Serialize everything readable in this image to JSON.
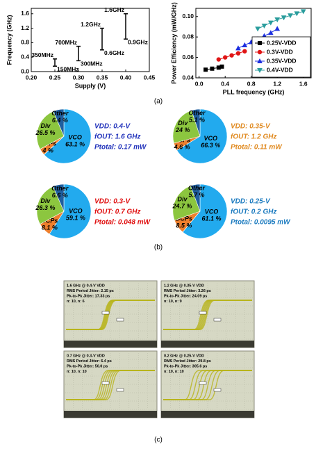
{
  "chart_data": [
    {
      "type": "range",
      "xlabel": "Supply (V)",
      "ylabel": "Frequency (GHz)",
      "x": [
        0.25,
        0.3,
        0.35,
        0.4
      ],
      "low": [
        0.15,
        0.3,
        0.6,
        0.9
      ],
      "high": [
        0.35,
        0.7,
        1.2,
        1.6
      ],
      "low_labels": [
        "150MHz",
        "300MHz",
        "0.6GHz",
        "0.9GHz"
      ],
      "high_labels": [
        "350MHz",
        "700MHz",
        "1.2GHz",
        "1.6GHz"
      ],
      "color": "#000000",
      "xlim": [
        0.2,
        0.45
      ],
      "xticks": [
        {
          "value": 0.2,
          "label": "0.20"
        },
        0.25,
        {
          "value": 0.3,
          "label": "0.30"
        },
        0.35,
        {
          "value": 0.4,
          "label": "0.40"
        },
        0.45
      ],
      "ylim": [
        0,
        1.75
      ],
      "yticks": [
        {
          "value": 0,
          "label": "0.0"
        },
        0.4,
        0.8,
        1.2,
        1.6
      ]
    },
    {
      "type": "line",
      "xlabel": "PLL frequency (GHz)",
      "ylabel": "Power Efficiency (mW/GHz)",
      "legend": "lower right",
      "series": [
        {
          "name": "0.25V-VDD",
          "color": "#000000",
          "marker": "square",
          "x": [
            0.1,
            0.2,
            0.3,
            0.35
          ],
          "values": [
            0.048,
            0.049,
            0.05,
            0.051
          ]
        },
        {
          "name": "0.3V-VDD",
          "color": "#e01515",
          "marker": "circle",
          "x": [
            0.3,
            0.4,
            0.5,
            0.6,
            0.7
          ],
          "values": [
            0.058,
            0.06,
            0.062,
            0.064,
            0.066
          ]
        },
        {
          "name": "0.35V-VDD",
          "color": "#1c2fe0",
          "marker": "triangle",
          "x": [
            0.6,
            0.7,
            0.8,
            0.9,
            1.0,
            1.1,
            1.2
          ],
          "values": [
            0.069,
            0.072,
            0.075,
            0.078,
            0.081,
            0.084,
            0.088
          ]
        },
        {
          "name": "0.4V-VDD",
          "color": "#2a9d9d",
          "marker": "triangle-down",
          "x": [
            0.9,
            1.0,
            1.1,
            1.2,
            1.3,
            1.4,
            1.5,
            1.6
          ],
          "values": [
            0.088,
            0.091,
            0.094,
            0.097,
            0.099,
            0.101,
            0.103,
            0.105
          ]
        }
      ],
      "xlim": [
        -0.05,
        1.72
      ],
      "xticks": [
        {
          "value": 0,
          "label": "0.0"
        },
        0.4,
        0.8,
        1.2,
        1.6
      ],
      "ylim": [
        0.04,
        0.108
      ],
      "yticks": [
        0.04,
        0.06,
        0.08,
        {
          "value": 0.1,
          "label": "0.10"
        }
      ]
    },
    {
      "type": "pie",
      "categories": [
        "VCO",
        "DCPs",
        "Div",
        "Other"
      ],
      "values": [
        63.1,
        4,
        26.5,
        6.4
      ],
      "value_labels": [
        "63.1 %",
        "4 %",
        "26.5 %",
        "6.4 %"
      ],
      "colors": [
        "#22aaee",
        "#ee7f2d",
        "#8cc63f",
        "#1f5f9f"
      ],
      "annotations": [
        "VDD: 0.4-V",
        "fOUT: 1.6 GHz",
        "Ptotal: 0.17 mW"
      ],
      "annotation_color": "#2233bb"
    },
    {
      "type": "pie",
      "categories": [
        "VCO",
        "DCPs",
        "Div",
        "Other"
      ],
      "values": [
        66.3,
        4.6,
        24,
        5.1
      ],
      "value_labels": [
        "66.3 %",
        "4.6 %",
        "24 %",
        "5.1 %"
      ],
      "colors": [
        "#22aaee",
        "#ee7f2d",
        "#8cc63f",
        "#1f5f9f"
      ],
      "annotations": [
        "VDD: 0.35-V",
        "fOUT: 1.2 GHz",
        "Ptotal: 0.11 mW"
      ],
      "annotation_color": "#e08a20"
    },
    {
      "type": "pie",
      "categories": [
        "VCO",
        "DCPs",
        "Div",
        "Other"
      ],
      "values": [
        59.1,
        8.1,
        26.3,
        6.6
      ],
      "value_labels": [
        "59.1 %",
        "8.1 %",
        "26.3 %",
        "6.6 %"
      ],
      "colors": [
        "#22aaee",
        "#ee7f2d",
        "#8cc63f",
        "#1f5f9f"
      ],
      "annotations": [
        "VDD: 0.3-V",
        "fOUT: 0.7 GHz",
        "Ptotal: 0.048 mW"
      ],
      "annotation_color": "#e01010"
    },
    {
      "type": "pie",
      "categories": [
        "VCO",
        "DCPs",
        "Div",
        "Other"
      ],
      "values": [
        61.1,
        8.5,
        24.7,
        5.7
      ],
      "value_labels": [
        "61.1 %",
        "8.5 %",
        "24.7 %",
        "5.7 %"
      ],
      "colors": [
        "#22aaee",
        "#ee7f2d",
        "#8cc63f",
        "#1f5f9f"
      ],
      "annotations": [
        "VDD: 0.25-V",
        "fOUT: 0.2 GHz",
        "Ptotal: 0.0095 mW"
      ],
      "annotation_color": "#1a7abf"
    }
  ],
  "captions": [
    "(a)",
    "(b)",
    "(c)"
  ],
  "scope_panels": [
    {
      "lines": [
        "1.6 GHz @ 0.4-V VDD",
        "RMS Period Jitter: 2.15 ps",
        "Pk-to-Pk Jitter: 17.33 ps",
        "n: 10, n: 6"
      ]
    },
    {
      "lines": [
        "1.2 GHz @ 0.35-V VDD",
        "RMS Period Jitter: 3.26 ps",
        "Pk-to-Pk Jitter: 24.09 ps",
        "n: 10, n: 9"
      ]
    },
    {
      "lines": [
        "0.7 GHz @ 0.3-V VDD",
        "RMS Period Jitter: 6.4 ps",
        "Pk-to-Pk Jitter: 50.0 ps",
        "n: 10, n: 10"
      ]
    },
    {
      "lines": [
        "0.2 GHz @ 0.25-V VDD",
        "RMS Period Jitter: 29.8 ps",
        "Pk-to-Pk Jitter: 305.6 ps",
        "n: 10, n: 10"
      ]
    }
  ]
}
